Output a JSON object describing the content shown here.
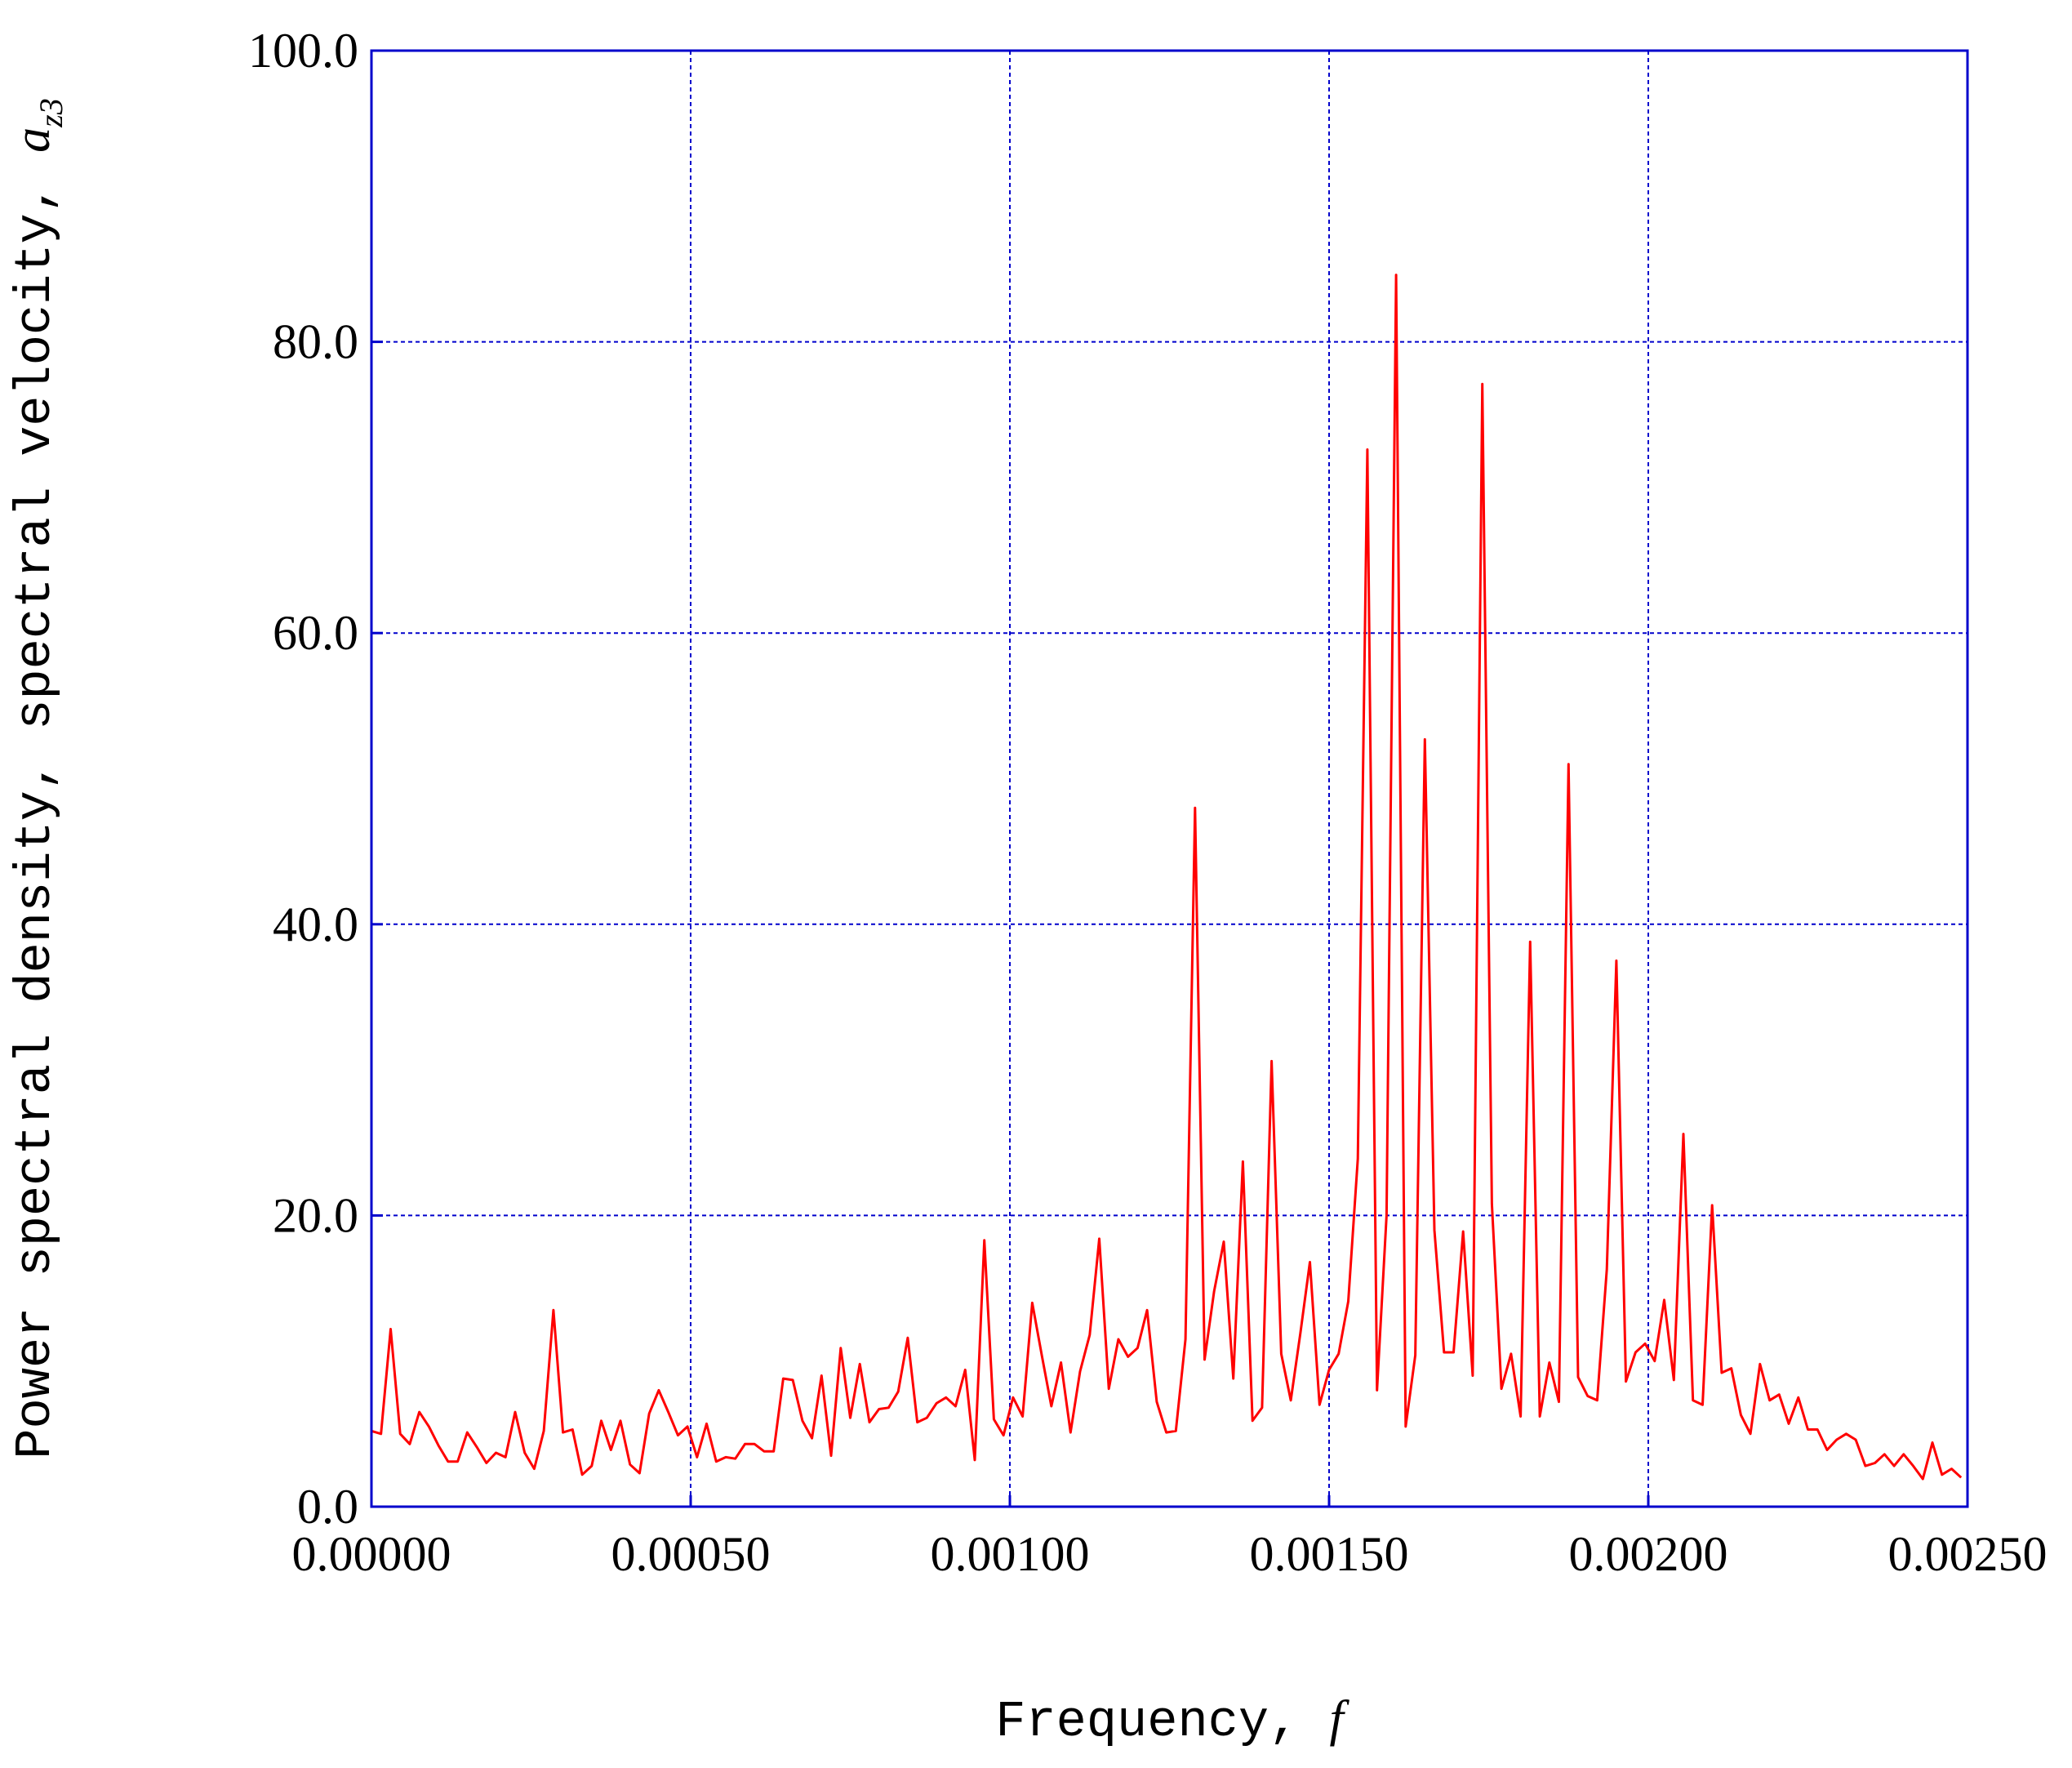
{
  "chart_data": {
    "type": "line",
    "xlabel": "Frequency, ",
    "xlabel_var": "f",
    "ylabel": "Power spectral density, spectral velocity, ",
    "ylabel_var": "a",
    "ylabel_sub": "z3",
    "xlim": [
      0.0,
      0.0025
    ],
    "ylim": [
      0.0,
      100.0
    ],
    "x_ticks": [
      0.0,
      0.0005,
      0.001,
      0.0015,
      0.002,
      0.0025
    ],
    "x_tick_labels": [
      "0.00000",
      "0.00050",
      "0.00100",
      "0.00150",
      "0.00200",
      "0.00250"
    ],
    "y_ticks": [
      0,
      20,
      40,
      60,
      80,
      100
    ],
    "y_tick_labels": [
      "0.0",
      "20.0",
      "40.0",
      "60.0",
      "80.0",
      "100.0"
    ],
    "grid": true,
    "colors": {
      "line": "#ff0000",
      "frame": "#0000cc",
      "grid": "#0000cc"
    },
    "series": [
      {
        "x": [
          0.0,
          1.5e-05,
          3e-05,
          4.5e-05,
          6e-05,
          7.5e-05,
          9e-05,
          0.000105,
          0.00012,
          0.000135,
          0.00015,
          0.000165,
          0.00018,
          0.000195,
          0.00021,
          0.000225,
          0.00024,
          0.000255,
          0.00027,
          0.000285,
          0.0003,
          0.000315,
          0.00033,
          0.000345,
          0.00036,
          0.000375,
          0.00039,
          0.000405,
          0.00042,
          0.000435,
          0.00045,
          0.000465,
          0.00048,
          0.000495,
          0.00051,
          0.000525,
          0.00054,
          0.000555,
          0.00057,
          0.000585,
          0.0006,
          0.000615,
          0.00063,
          0.000645,
          0.00066,
          0.000675,
          0.00069,
          0.000705,
          0.00072,
          0.000735,
          0.00075,
          0.000765,
          0.00078,
          0.000795,
          0.00081,
          0.000825,
          0.00084,
          0.000855,
          0.00087,
          0.000885,
          0.0009,
          0.000915,
          0.00093,
          0.000945,
          0.00096,
          0.000975,
          0.00099,
          0.001005,
          0.00102,
          0.001035,
          0.00105,
          0.001065,
          0.00108,
          0.001095,
          0.00111,
          0.001125,
          0.00114,
          0.001155,
          0.00117,
          0.001185,
          0.0012,
          0.001215,
          0.00123,
          0.001245,
          0.00126,
          0.001275,
          0.00129,
          0.001305,
          0.00132,
          0.001335,
          0.00135,
          0.001365,
          0.00138,
          0.001395,
          0.00141,
          0.001425,
          0.00144,
          0.001455,
          0.00147,
          0.001485,
          0.0015,
          0.001515,
          0.00153,
          0.001545,
          0.00156,
          0.001575,
          0.00159,
          0.001605,
          0.00162,
          0.001635,
          0.00165,
          0.001665,
          0.00168,
          0.001695,
          0.00171,
          0.001725,
          0.00174,
          0.001755,
          0.00177,
          0.001785,
          0.0018,
          0.001815,
          0.00183,
          0.001845,
          0.00186,
          0.001875,
          0.00189,
          0.001905,
          0.00192,
          0.001935,
          0.00195,
          0.001965,
          0.00198,
          0.001995,
          0.00201,
          0.002025,
          0.00204,
          0.002055,
          0.00207,
          0.002085,
          0.0021,
          0.002115,
          0.00213,
          0.002145,
          0.00216,
          0.002175,
          0.00219,
          0.002205,
          0.00222,
          0.002235,
          0.00225,
          0.002265,
          0.00228,
          0.002295,
          0.00231,
          0.002325,
          0.00234,
          0.002355,
          0.00237,
          0.002385,
          0.0024,
          0.002415,
          0.00243,
          0.002445,
          0.00246,
          0.002475,
          0.00249
        ],
        "values": [
          5.2,
          5.0,
          12.2,
          5.0,
          4.3,
          6.5,
          5.5,
          4.2,
          3.1,
          3.1,
          5.1,
          4.1,
          3.0,
          3.7,
          3.4,
          6.5,
          3.7,
          2.6,
          5.2,
          13.5,
          5.1,
          5.3,
          2.2,
          2.8,
          5.9,
          3.9,
          5.9,
          2.9,
          2.3,
          6.4,
          8.0,
          6.5,
          4.9,
          5.5,
          3.4,
          5.7,
          3.1,
          3.4,
          3.3,
          4.3,
          4.3,
          3.8,
          3.8,
          8.8,
          8.7,
          5.9,
          4.7,
          9.0,
          3.5,
          10.9,
          6.1,
          9.8,
          5.8,
          6.7,
          6.8,
          7.9,
          11.6,
          5.8,
          6.1,
          7.1,
          7.5,
          6.9,
          9.4,
          3.2,
          18.3,
          6.0,
          4.9,
          7.5,
          6.2,
          14.0,
          10.4,
          6.9,
          9.9,
          5.1,
          9.3,
          11.8,
          18.4,
          8.1,
          11.5,
          10.3,
          10.9,
          13.5,
          7.2,
          5.1,
          5.2,
          11.5,
          48.0,
          10.1,
          14.8,
          18.2,
          8.8,
          23.7,
          5.9,
          6.8,
          30.6,
          10.5,
          7.3,
          11.9,
          16.8,
          7.0,
          9.4,
          10.5,
          14.1,
          23.9,
          72.6,
          8.0,
          20.0,
          84.6,
          5.5,
          10.4,
          52.7,
          19.0,
          10.6,
          10.6,
          18.9,
          9.0,
          77.1,
          20.8,
          8.1,
          10.5,
          6.2,
          38.8,
          6.2,
          9.9,
          7.2,
          51.0,
          8.9,
          7.6,
          7.3,
          16.3,
          37.5,
          8.6,
          10.6,
          11.2,
          10.0,
          14.2,
          8.7,
          25.6,
          7.3,
          7.0,
          20.7,
          9.2,
          9.5,
          6.3,
          5.0,
          9.8,
          7.3,
          7.7,
          5.7,
          7.5,
          5.3,
          5.3,
          3.9,
          4.6,
          5.0,
          4.6,
          2.8,
          3.0,
          3.6,
          2.8,
          3.6,
          2.8,
          1.9,
          4.4,
          2.2,
          2.6,
          2.0
        ]
      }
    ]
  }
}
